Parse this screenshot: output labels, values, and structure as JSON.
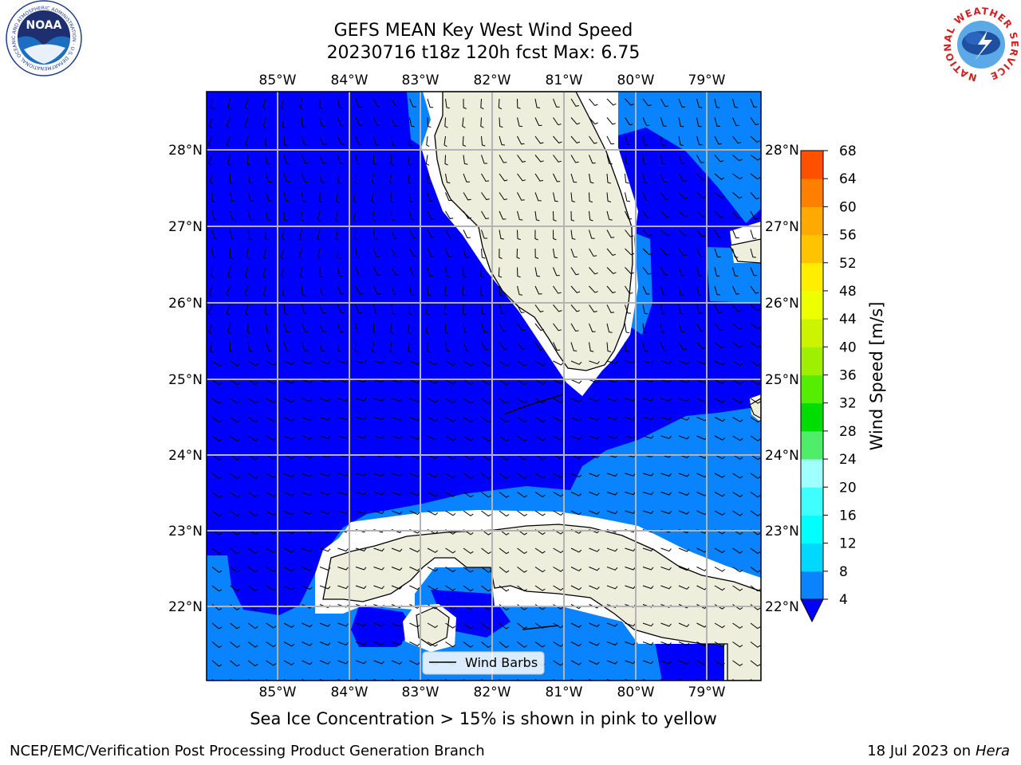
{
  "header": {
    "title_line1": "GEFS MEAN Key West Wind Speed",
    "title_line2": "20230716 t18z 120h fcst    Max: 6.75"
  },
  "logos": {
    "left": {
      "name": "NOAA",
      "ring_text": "NATIONAL OCEANIC AND ATMOSPHERIC ADMINISTRATION · U.S. DEPARTMENT OF COMMERCE"
    },
    "right": {
      "ring_text": "NATIONAL WEATHER SERVICE"
    }
  },
  "map": {
    "lon_labels": [
      "85°W",
      "84°W",
      "83°W",
      "82°W",
      "81°W",
      "80°W",
      "79°W"
    ],
    "lat_labels": [
      "28°N",
      "27°N",
      "26°N",
      "25°N",
      "24°N",
      "23°N",
      "22°N"
    ],
    "legend_label": "Wind Barbs",
    "colors": {
      "band_0_4": "#0000ff",
      "band_4_8": "#0a83ff",
      "land": "#eeeedc",
      "grid": "#b4b4b4"
    }
  },
  "colorbar": {
    "label": "Wind Speed [m/s]",
    "ticks": [
      "4",
      "8",
      "12",
      "16",
      "20",
      "24",
      "28",
      "32",
      "36",
      "40",
      "44",
      "48",
      "52",
      "56",
      "60",
      "64",
      "68"
    ],
    "colors": [
      "#0a83ff",
      "#00d8ff",
      "#00ffff",
      "#40ffff",
      "#a0ffff",
      "#4eee6a",
      "#00dd00",
      "#55ee00",
      "#9fef00",
      "#ccf300",
      "#eeff00",
      "#ffee00",
      "#ffc300",
      "#ffaa00",
      "#ff8000",
      "#ff5000",
      "#ff1800",
      "#ff0000"
    ],
    "extend_color": "#0000ff"
  },
  "note": "Sea Ice Concentration > 15% is shown in pink to yellow",
  "footer": {
    "left": "NCEP/EMC/Verification Post Processing Product Generation Branch",
    "date": "18 Jul 2023 on ",
    "host": "Hera"
  }
}
